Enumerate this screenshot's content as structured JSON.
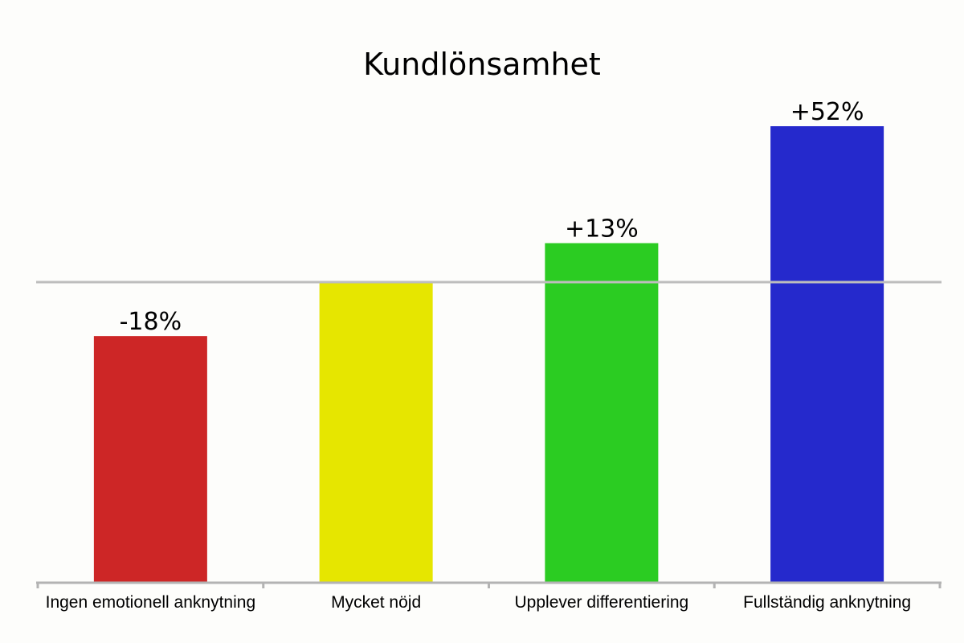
{
  "chart_data": {
    "type": "bar",
    "title": "Kundlönsamhet",
    "categories": [
      "Ingen emotionell anknytning",
      "Mycket nöjd",
      "Upplever differentiering",
      "Fullständig anknytning"
    ],
    "values": [
      -18,
      0,
      13,
      52
    ],
    "value_labels": [
      "-18%",
      "",
      "+13%",
      "+52%"
    ],
    "colors": [
      "#cd2626",
      "#e6e600",
      "#2bcc22",
      "#2529cc"
    ],
    "baseline": 0,
    "ylim": [
      -100,
      60
    ],
    "xlabel": "",
    "ylabel": "",
    "grid": false,
    "legend": "none",
    "reference_line_color": "#bdbdbd",
    "axis_color": "#b3b3b3"
  }
}
